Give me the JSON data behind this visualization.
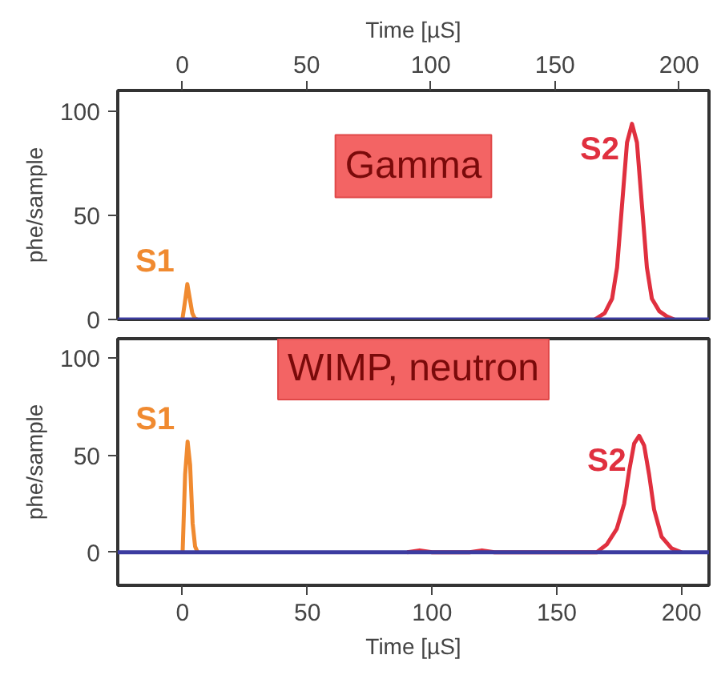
{
  "chart_data": [
    {
      "type": "line",
      "ylabel": "phe/sample",
      "x2label": "Time [µS]",
      "xlim": [
        -26,
        212
      ],
      "xticks": [
        0,
        50,
        100,
        150,
        200
      ],
      "x2lim": [
        -26,
        212
      ],
      "x2ticks": [
        0,
        50,
        100,
        150,
        200
      ],
      "tick_labels": "y",
      "ylim": [
        0,
        110
      ],
      "yticks": [
        0,
        50,
        100
      ],
      "grid": false,
      "annotations": [
        "Gamma"
      ],
      "series": [
        {
          "name": "S1",
          "color": "#f08a30",
          "x": [
            0,
            1,
            2,
            3,
            4,
            5,
            6
          ],
          "values": [
            0,
            8,
            17,
            10,
            3,
            0.5,
            0
          ]
        },
        {
          "name": "S2",
          "color": "#e0303f",
          "x": [
            166,
            170,
            173,
            175,
            177,
            179,
            181,
            183,
            185,
            187,
            189,
            192,
            195,
            198
          ],
          "values": [
            0,
            3,
            10,
            25,
            55,
            85,
            94,
            85,
            55,
            25,
            10,
            4,
            1.5,
            0
          ]
        },
        {
          "color": "#3c3ca0",
          "x": [
            -26,
            212
          ],
          "values": [
            0,
            0
          ]
        }
      ]
    },
    {
      "type": "line",
      "ylabel": "phe/sample",
      "xlabel": "Time [µS]",
      "xlim": [
        -26,
        211
      ],
      "xticks": [
        0,
        50,
        100,
        150,
        200
      ],
      "ylim": [
        -17,
        110
      ],
      "yticks": [
        0,
        50,
        100
      ],
      "grid": false,
      "annotations": [
        "WIMP, neutron"
      ],
      "series": [
        {
          "name": "S1",
          "color": "#f08a30",
          "x": [
            0,
            1,
            2,
            3,
            4,
            5,
            6
          ],
          "values": [
            0,
            40,
            57,
            45,
            15,
            3,
            0
          ]
        },
        {
          "name": "S2",
          "color": "#e0303f",
          "x": [
            90,
            95,
            100,
            115,
            120,
            125,
            166,
            170,
            174,
            177,
            179,
            181,
            183,
            185,
            187,
            189,
            192,
            196,
            200
          ],
          "values": [
            0,
            1,
            0,
            0,
            1,
            0,
            0,
            4,
            12,
            25,
            42,
            56,
            60,
            55,
            40,
            22,
            8,
            2,
            0
          ]
        },
        {
          "color": "#3c3ca0",
          "x": [
            -26,
            211
          ],
          "values": [
            0,
            0
          ]
        }
      ]
    }
  ]
}
